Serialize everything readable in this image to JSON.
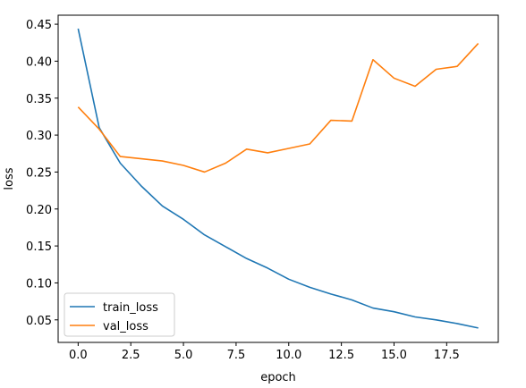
{
  "chart_data": {
    "type": "line",
    "title": "",
    "xlabel": "epoch",
    "ylabel": "loss",
    "xlim": [
      -0.95,
      19.95
    ],
    "ylim": [
      0.0195,
      0.4622
    ],
    "x_ticks": [
      0.0,
      2.5,
      5.0,
      7.5,
      10.0,
      12.5,
      15.0,
      17.5
    ],
    "x_tick_labels": [
      "0.0",
      "2.5",
      "5.0",
      "7.5",
      "10.0",
      "12.5",
      "15.0",
      "17.5"
    ],
    "y_ticks": [
      0.05,
      0.1,
      0.15,
      0.2,
      0.25,
      0.3,
      0.35,
      0.4,
      0.45
    ],
    "y_tick_labels": [
      "0.05",
      "0.10",
      "0.15",
      "0.20",
      "0.25",
      "0.30",
      "0.35",
      "0.40",
      "0.45"
    ],
    "grid": false,
    "legend_position": "lower-left",
    "x": [
      0,
      1,
      2,
      3,
      4,
      5,
      6,
      7,
      8,
      9,
      10,
      11,
      12,
      13,
      14,
      15,
      16,
      17,
      18,
      19
    ],
    "series": [
      {
        "name": "train_loss",
        "color": "#1f77b4",
        "values": [
          0.444,
          0.31,
          0.262,
          0.231,
          0.204,
          0.186,
          0.165,
          0.149,
          0.133,
          0.12,
          0.105,
          0.094,
          0.085,
          0.077,
          0.066,
          0.061,
          0.054,
          0.05,
          0.045,
          0.039
        ]
      },
      {
        "name": "val_loss",
        "color": "#ff7f0e",
        "values": [
          0.338,
          0.308,
          0.271,
          0.268,
          0.265,
          0.259,
          0.25,
          0.262,
          0.281,
          0.276,
          0.282,
          0.288,
          0.32,
          0.319,
          0.402,
          0.377,
          0.366,
          0.389,
          0.393,
          0.424
        ]
      }
    ]
  }
}
